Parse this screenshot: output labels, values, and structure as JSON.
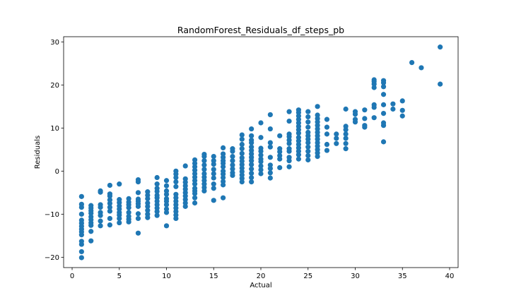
{
  "chart_data": {
    "type": "scatter",
    "title": "RandomForest_Residuals_df_steps_pb",
    "xlabel": "Actual",
    "ylabel": "Residuals",
    "xlim": [
      -0.9,
      40.9
    ],
    "ylim": [
      -22.4,
      31.2
    ],
    "xticks": [
      0,
      5,
      10,
      15,
      20,
      25,
      30,
      35,
      40
    ],
    "yticks": [
      -20,
      -10,
      0,
      10,
      20,
      30
    ],
    "grid": false,
    "legend": "none",
    "marker_color": "#1f77b4",
    "series": [
      {
        "points": [
          [
            1,
            -20.1
          ],
          [
            1,
            -18.7
          ],
          [
            1,
            -17
          ],
          [
            1,
            -16.3
          ],
          [
            1,
            -14.8
          ],
          [
            1,
            -14.1
          ],
          [
            1,
            -13.5
          ],
          [
            1,
            -12.8
          ],
          [
            1,
            -12.1
          ],
          [
            1,
            -11.4
          ],
          [
            1,
            -10
          ],
          [
            1,
            -8.4
          ],
          [
            1,
            -7.7
          ],
          [
            1,
            -5.9
          ],
          [
            2,
            -16.2
          ],
          [
            2,
            -14
          ],
          [
            2,
            -12.6
          ],
          [
            2,
            -12
          ],
          [
            2,
            -11.3
          ],
          [
            2,
            -10.6
          ],
          [
            2,
            -9.8
          ],
          [
            2,
            -9.2
          ],
          [
            2,
            -8.6
          ],
          [
            2,
            -8
          ],
          [
            3,
            -12.7
          ],
          [
            3,
            -11.6
          ],
          [
            3,
            -10.3
          ],
          [
            3,
            -9.6
          ],
          [
            3,
            -8.4
          ],
          [
            3,
            -7.8
          ],
          [
            3,
            -4.9
          ],
          [
            3,
            -4.6
          ],
          [
            4,
            -12.5
          ],
          [
            4,
            -11
          ],
          [
            4,
            -9.3
          ],
          [
            4,
            -8.4
          ],
          [
            4,
            -7.5
          ],
          [
            4,
            -6.7
          ],
          [
            4,
            -5.8
          ],
          [
            4,
            -5.3
          ],
          [
            4,
            -3.3
          ],
          [
            5,
            -12
          ],
          [
            5,
            -11
          ],
          [
            5,
            -10.2
          ],
          [
            5,
            -9.6
          ],
          [
            5,
            -8.8
          ],
          [
            5,
            -8.1
          ],
          [
            5,
            -7.3
          ],
          [
            5,
            -6.6
          ],
          [
            5,
            -3
          ],
          [
            6,
            -11.8
          ],
          [
            6,
            -11.2
          ],
          [
            6,
            -10.5
          ],
          [
            6,
            -9.6
          ],
          [
            6,
            -8.5
          ],
          [
            6,
            -7.8
          ],
          [
            6,
            -7.2
          ],
          [
            6,
            -6.4
          ],
          [
            7,
            -14.4
          ],
          [
            7,
            -11
          ],
          [
            7,
            -9.9
          ],
          [
            7,
            -8.2
          ],
          [
            7,
            -7.6
          ],
          [
            7,
            -7
          ],
          [
            7,
            -6.5
          ],
          [
            7,
            -5
          ],
          [
            7,
            -2.5
          ],
          [
            7,
            -2
          ],
          [
            8,
            -10.8
          ],
          [
            8,
            -10
          ],
          [
            8,
            -9.1
          ],
          [
            8,
            -8.2
          ],
          [
            8,
            -7.4
          ],
          [
            8,
            -6.4
          ],
          [
            8,
            -5.6
          ],
          [
            8,
            -4.8
          ],
          [
            9,
            -10.3
          ],
          [
            9,
            -9.4
          ],
          [
            9,
            -8.6
          ],
          [
            9,
            -7.8
          ],
          [
            9,
            -7
          ],
          [
            9,
            -6.2
          ],
          [
            9,
            -5.6
          ],
          [
            9,
            -4.7
          ],
          [
            9,
            -4
          ],
          [
            9,
            -3
          ],
          [
            9,
            -1.5
          ],
          [
            10,
            -12.7
          ],
          [
            10,
            -9.6
          ],
          [
            10,
            -8.8
          ],
          [
            10,
            -7.8
          ],
          [
            10,
            -7
          ],
          [
            10,
            -6.4
          ],
          [
            10,
            -5.4
          ],
          [
            10,
            -4.6
          ],
          [
            10,
            -3.4
          ],
          [
            10,
            -2.2
          ],
          [
            11,
            -11
          ],
          [
            11,
            -10.2
          ],
          [
            11,
            -9.4
          ],
          [
            11,
            -8.6
          ],
          [
            11,
            -7.8
          ],
          [
            11,
            -7
          ],
          [
            11,
            -6.2
          ],
          [
            11,
            -5.4
          ],
          [
            11,
            -3.6
          ],
          [
            11,
            -2.5
          ],
          [
            11,
            -1.5
          ],
          [
            11,
            -0.7
          ],
          [
            11,
            0
          ],
          [
            12,
            -8.2
          ],
          [
            12,
            -7.4
          ],
          [
            12,
            -6.6
          ],
          [
            12,
            -5.8
          ],
          [
            12,
            -5
          ],
          [
            12,
            -4.2
          ],
          [
            12,
            -3.4
          ],
          [
            12,
            -2.6
          ],
          [
            12,
            -1.8
          ],
          [
            12,
            1.2
          ],
          [
            13,
            -7.4
          ],
          [
            13,
            -6.2
          ],
          [
            13,
            -5.2
          ],
          [
            13,
            -4.6
          ],
          [
            13,
            -4
          ],
          [
            13,
            -3
          ],
          [
            13,
            -2.2
          ],
          [
            13,
            -1.4
          ],
          [
            13,
            -0.6
          ],
          [
            13,
            0.2
          ],
          [
            13,
            1
          ],
          [
            13,
            1.8
          ],
          [
            13,
            2.6
          ],
          [
            14,
            -4.6
          ],
          [
            14,
            -3.8
          ],
          [
            14,
            -3
          ],
          [
            14,
            -2.2
          ],
          [
            14,
            -1.4
          ],
          [
            14,
            -0.6
          ],
          [
            14,
            0.4
          ],
          [
            14,
            1.4
          ],
          [
            14,
            2.4
          ],
          [
            14,
            3.4
          ],
          [
            14,
            3.9
          ],
          [
            15,
            -6.8
          ],
          [
            15,
            -4
          ],
          [
            15,
            -3
          ],
          [
            15,
            -1.6
          ],
          [
            15,
            -0.6
          ],
          [
            15,
            0.4
          ],
          [
            15,
            1.6
          ],
          [
            15,
            2.4
          ],
          [
            15,
            3.4
          ],
          [
            16,
            -6.2
          ],
          [
            16,
            -3.2
          ],
          [
            16,
            -2.4
          ],
          [
            16,
            -1.5
          ],
          [
            16,
            -0.7
          ],
          [
            16,
            0
          ],
          [
            16,
            1
          ],
          [
            16,
            1.8
          ],
          [
            16,
            2.4
          ],
          [
            16,
            3.2
          ],
          [
            16,
            4
          ],
          [
            16,
            5.4
          ],
          [
            17,
            -1
          ],
          [
            17,
            -0.4
          ],
          [
            17,
            0.5
          ],
          [
            17,
            1.4
          ],
          [
            17,
            2.4
          ],
          [
            17,
            3.4
          ],
          [
            17,
            4.6
          ],
          [
            17,
            5.2
          ],
          [
            18,
            -2.5
          ],
          [
            18,
            -1.7
          ],
          [
            18,
            -0.9
          ],
          [
            18,
            -0.1
          ],
          [
            18,
            0.7
          ],
          [
            18,
            1.5
          ],
          [
            18,
            2.3
          ],
          [
            18,
            3.1
          ],
          [
            18,
            4.1
          ],
          [
            18,
            5.2
          ],
          [
            18,
            6.2
          ],
          [
            18,
            7.4
          ],
          [
            18,
            8.4
          ],
          [
            19,
            -2.5
          ],
          [
            19,
            -1.5
          ],
          [
            19,
            -0.5
          ],
          [
            19,
            0.5
          ],
          [
            19,
            1.5
          ],
          [
            19,
            2.4
          ],
          [
            19,
            3.2
          ],
          [
            19,
            4
          ],
          [
            19,
            4.8
          ],
          [
            19,
            5.6
          ],
          [
            19,
            6.6
          ],
          [
            19,
            7.2
          ],
          [
            19,
            8.2
          ],
          [
            19,
            9.8
          ],
          [
            20,
            -0.6
          ],
          [
            20,
            0.3
          ],
          [
            20,
            1.2
          ],
          [
            20,
            2.2
          ],
          [
            20,
            2.8
          ],
          [
            20,
            3.7
          ],
          [
            20,
            4.6
          ],
          [
            20,
            5.3
          ],
          [
            20,
            7.8
          ],
          [
            20,
            11.2
          ],
          [
            21,
            -1.6
          ],
          [
            21,
            -0.4
          ],
          [
            21,
            0.6
          ],
          [
            21,
            1.4
          ],
          [
            21,
            3.2
          ],
          [
            21,
            5.6
          ],
          [
            21,
            6.6
          ],
          [
            21,
            9.8
          ],
          [
            21,
            13.1
          ],
          [
            22,
            0.8
          ],
          [
            22,
            2.8
          ],
          [
            22,
            3.6
          ],
          [
            22,
            4.5
          ],
          [
            22,
            5.2
          ],
          [
            22,
            8.2
          ],
          [
            23,
            1
          ],
          [
            23,
            2.4
          ],
          [
            23,
            3.2
          ],
          [
            23,
            4.6
          ],
          [
            23,
            5.2
          ],
          [
            23,
            6.4
          ],
          [
            23,
            7.2
          ],
          [
            23,
            8
          ],
          [
            23,
            8.6
          ],
          [
            23,
            11.6
          ],
          [
            23,
            13.8
          ],
          [
            24,
            2.8
          ],
          [
            24,
            3.8
          ],
          [
            24,
            4.6
          ],
          [
            24,
            5.4
          ],
          [
            24,
            6.2
          ],
          [
            24,
            7
          ],
          [
            24,
            7.8
          ],
          [
            24,
            8.8
          ],
          [
            24,
            9.6
          ],
          [
            24,
            10.4
          ],
          [
            24,
            11.2
          ],
          [
            24,
            12
          ],
          [
            24,
            12.8
          ],
          [
            24,
            13.6
          ],
          [
            24,
            14.2
          ],
          [
            25,
            2.6
          ],
          [
            25,
            3.6
          ],
          [
            25,
            4.6
          ],
          [
            25,
            5.6
          ],
          [
            25,
            6.6
          ],
          [
            25,
            7.4
          ],
          [
            25,
            8.2
          ],
          [
            25,
            9
          ],
          [
            25,
            10.2
          ],
          [
            25,
            11.4
          ],
          [
            25,
            12.6
          ],
          [
            25,
            13.8
          ],
          [
            26,
            3.4
          ],
          [
            26,
            4.2
          ],
          [
            26,
            5
          ],
          [
            26,
            5.8
          ],
          [
            26,
            6.6
          ],
          [
            26,
            7.4
          ],
          [
            26,
            8.2
          ],
          [
            26,
            9
          ],
          [
            26,
            9.8
          ],
          [
            26,
            10.6
          ],
          [
            26,
            11.4
          ],
          [
            26,
            12.2
          ],
          [
            26,
            13
          ],
          [
            26,
            15
          ],
          [
            27,
            4.8
          ],
          [
            27,
            6.2
          ],
          [
            27,
            8.6
          ],
          [
            27,
            10.2
          ],
          [
            27,
            12
          ],
          [
            28,
            6.4
          ],
          [
            28,
            7.6
          ],
          [
            28,
            8.6
          ],
          [
            29,
            5.2
          ],
          [
            29,
            6.4
          ],
          [
            29,
            7.6
          ],
          [
            29,
            8.6
          ],
          [
            29,
            9.6
          ],
          [
            29,
            10.4
          ],
          [
            29,
            14.4
          ],
          [
            30,
            11.4
          ],
          [
            30,
            12
          ],
          [
            30,
            13.2
          ],
          [
            30,
            13.8
          ],
          [
            31,
            10.2
          ],
          [
            31,
            10.6
          ],
          [
            31,
            12.2
          ],
          [
            31,
            14.2
          ],
          [
            32,
            12.4
          ],
          [
            32,
            14.8
          ],
          [
            32,
            15.4
          ],
          [
            32,
            19.4
          ],
          [
            32,
            20.2
          ],
          [
            32,
            20.8
          ],
          [
            32,
            21.2
          ],
          [
            33,
            6.8
          ],
          [
            33,
            10.6
          ],
          [
            33,
            11.2
          ],
          [
            33,
            13.4
          ],
          [
            33,
            15.4
          ],
          [
            33,
            17.8
          ],
          [
            33,
            19.6
          ],
          [
            33,
            20.5
          ],
          [
            33,
            21
          ],
          [
            34,
            14.4
          ],
          [
            34,
            15.6
          ],
          [
            35,
            12.8
          ],
          [
            35,
            14.1
          ],
          [
            35,
            16.3
          ],
          [
            36,
            25.2
          ],
          [
            37,
            24
          ],
          [
            39,
            20.2
          ],
          [
            39,
            28.8
          ]
        ]
      }
    ]
  }
}
